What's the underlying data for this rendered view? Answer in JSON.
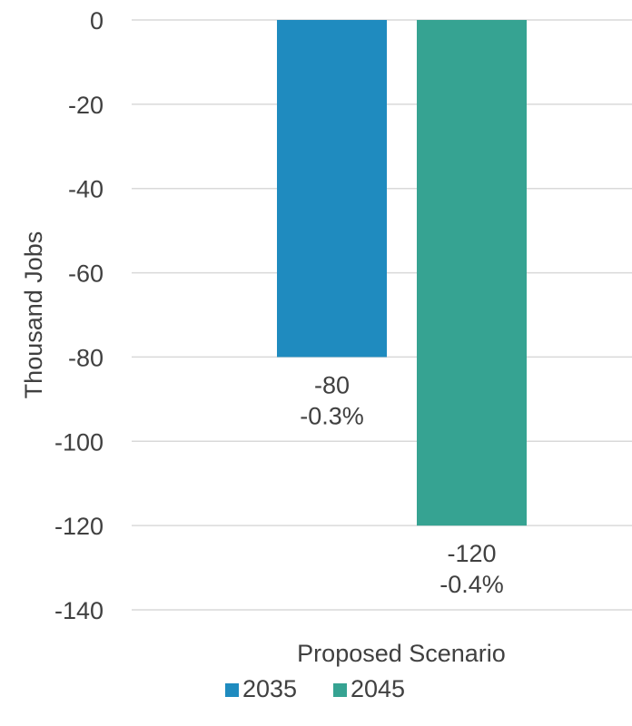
{
  "chart_data": {
    "type": "bar",
    "categories": [
      "Proposed Scenario"
    ],
    "series": [
      {
        "name": "2035",
        "values": [
          -80
        ],
        "labels": [
          "-80",
          "-0.3%"
        ],
        "color": "#1f8bbf"
      },
      {
        "name": "2045",
        "values": [
          -120
        ],
        "labels": [
          "-120",
          "-0.4%"
        ],
        "color": "#36a392"
      }
    ],
    "title": "",
    "xlabel": "",
    "ylabel": "Thousand Jobs",
    "ylim": [
      -140,
      0
    ],
    "yticks": [
      "0",
      "-20",
      "-40",
      "-60",
      "-80",
      "-100",
      "-120",
      "-140"
    ],
    "grid": true,
    "legend_position": "bottom"
  }
}
